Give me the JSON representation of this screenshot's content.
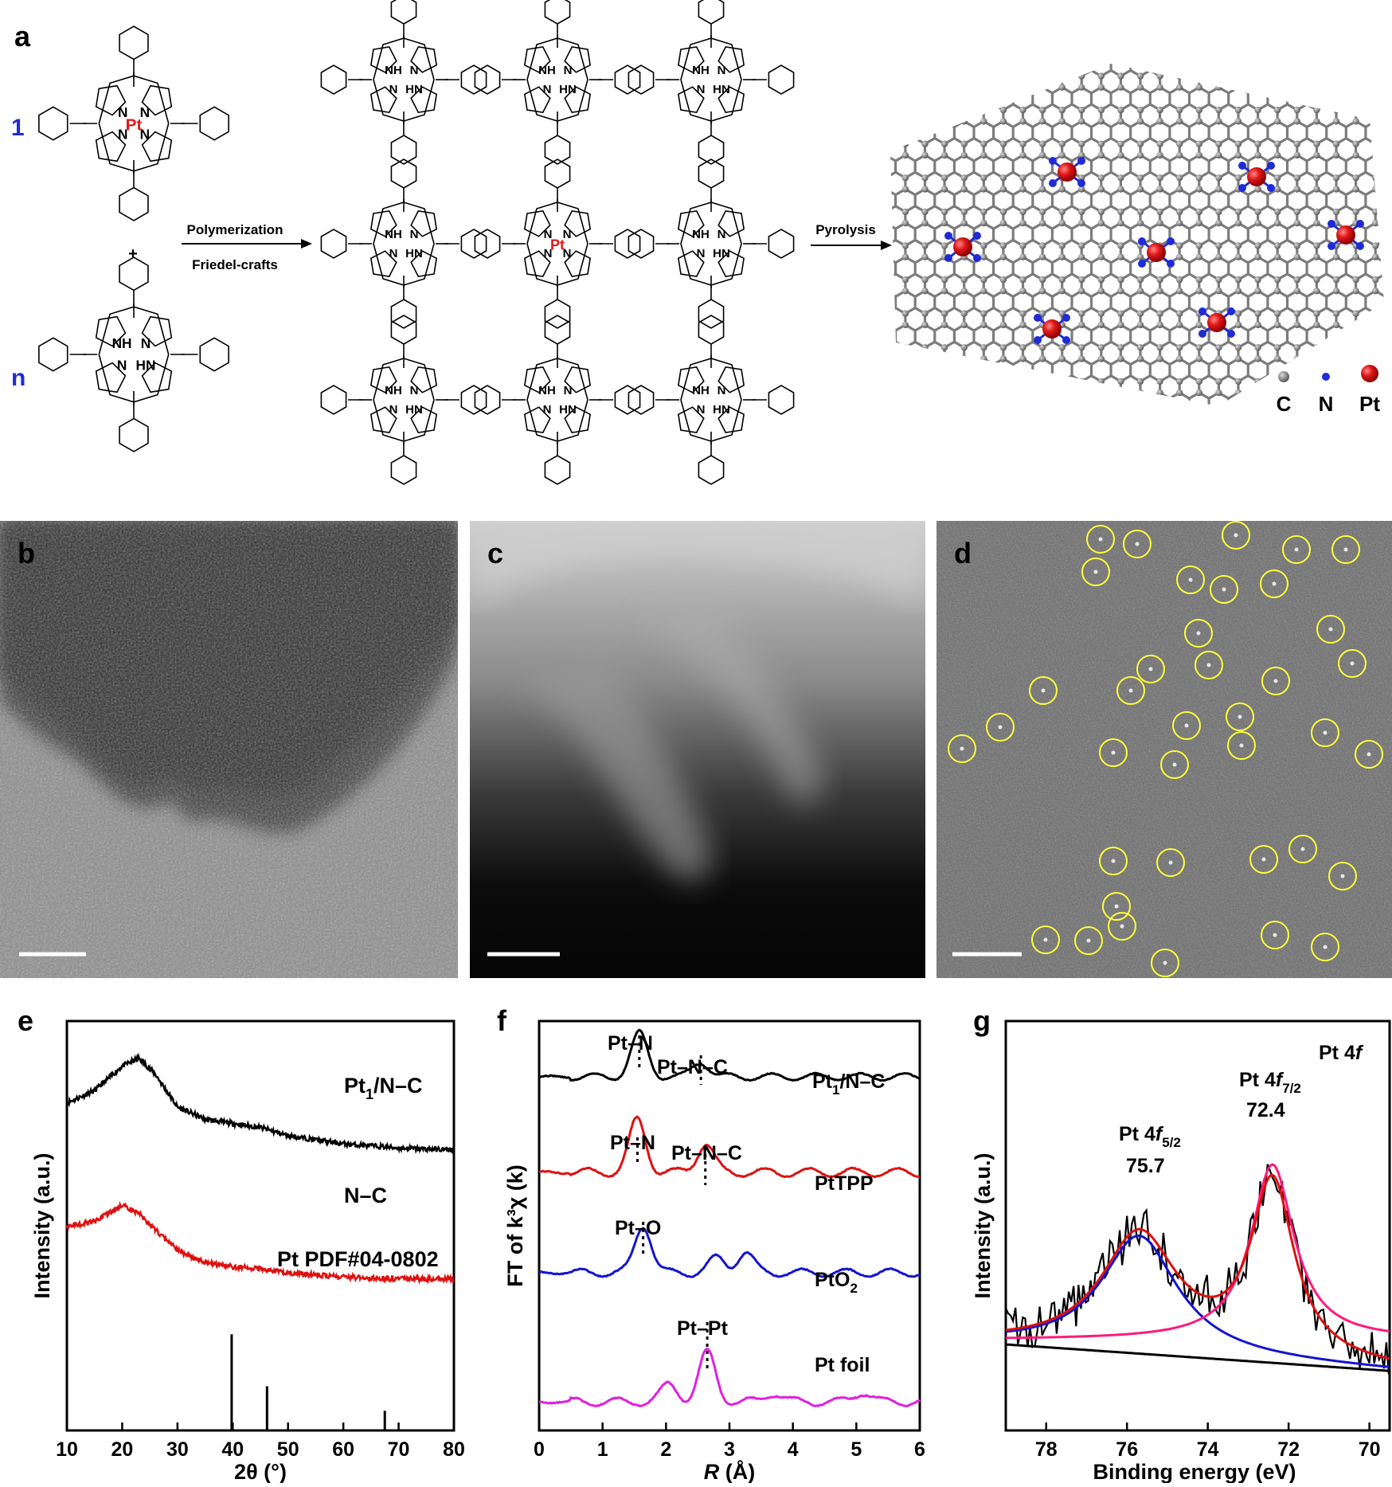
{
  "panel_a": {
    "letter": "a",
    "monomer_count_1": "1",
    "monomer_count_n": "n",
    "plus": "+",
    "reaction_1_top": "Polymerization",
    "reaction_1_bottom": "Friedel-crafts",
    "reaction_2": "Pyrolysis",
    "labels": {
      "nh": "NH",
      "hn": "HN",
      "n": "N",
      "pt": "Pt"
    },
    "legend": [
      {
        "label": "C",
        "color": "#8a8a8a"
      },
      {
        "label": "N",
        "color": "#1f2bd6"
      },
      {
        "label": "Pt",
        "color": "#d81a1a"
      }
    ]
  },
  "panel_b": {
    "letter": "b"
  },
  "panel_c": {
    "letter": "c"
  },
  "panel_d": {
    "letter": "d"
  },
  "colors": {
    "black": "#000000",
    "red": "#e01010",
    "blue": "#1414d0",
    "magenta": "#e020e0",
    "pink": "#ff1a7a",
    "label_blue": "#1f2bd6",
    "pt_red": "#e01818",
    "circle_yellow": "#ffff3a"
  },
  "chart_data": [
    {
      "panel": "e",
      "type": "line",
      "xlabel": "2θ (°)",
      "ylabel": "Intensity (a.u.)",
      "xlim": [
        10,
        80
      ],
      "xticks": [
        "10",
        "20",
        "30",
        "40",
        "50",
        "60",
        "70",
        "80"
      ],
      "series": [
        {
          "name": "Pt1/N–C",
          "x": [
            10,
            15,
            20,
            23,
            26,
            30,
            35,
            40,
            45,
            50,
            60,
            70,
            80
          ],
          "y": [
            8.0,
            8.3,
            8.9,
            9.1,
            8.7,
            7.9,
            7.6,
            7.5,
            7.4,
            7.2,
            7.0,
            6.9,
            6.85
          ]
        },
        {
          "name": "N–C",
          "x": [
            10,
            15,
            20,
            23,
            26,
            30,
            35,
            40,
            45,
            50,
            60,
            70,
            80
          ],
          "y": [
            5.0,
            5.1,
            5.5,
            5.3,
            4.9,
            4.4,
            4.1,
            4.0,
            3.95,
            3.85,
            3.75,
            3.7,
            3.7
          ]
        }
      ],
      "reference": {
        "name": "Pt PDF#04-0802",
        "peaks": [
          [
            39.8,
            2.35
          ],
          [
            46.2,
            1.08
          ],
          [
            67.5,
            0.48
          ]
        ]
      },
      "labels": {
        "series1": "Pt",
        "series1_sub": "1",
        "series1_tail": "/N–C",
        "series2": "N–C",
        "reference": "Pt PDF#04-0802"
      }
    },
    {
      "panel": "f",
      "type": "line",
      "xlabel_italic": "R",
      "xlabel_rest": " (Å)",
      "ylabel": "FT of k³χ (k)",
      "xlim": [
        0,
        6
      ],
      "xticks": [
        "0",
        "1",
        "2",
        "3",
        "4",
        "5",
        "6"
      ],
      "series": [
        {
          "name": "Pt1/N–C",
          "peaks": [
            [
              1.58,
              1.0
            ],
            [
              2.55,
              0.35
            ]
          ]
        },
        {
          "name": "PtTPP",
          "peaks": [
            [
              1.55,
              1.0
            ],
            [
              2.62,
              0.55
            ]
          ]
        },
        {
          "name": "PtO2",
          "peaks": [
            [
              1.64,
              1.0
            ],
            [
              2.8,
              0.3
            ],
            [
              3.25,
              0.42
            ]
          ]
        },
        {
          "name": "Pt foil",
          "peaks": [
            [
              2.05,
              0.35
            ],
            [
              2.65,
              1.0
            ],
            [
              3.7,
              0.18
            ],
            [
              5.1,
              0.2
            ]
          ]
        }
      ],
      "annotations": [
        "Pt–N",
        "Pt–N–C",
        "Pt–N",
        "Pt–N–C",
        "Pt–O",
        "Pt–Pt"
      ],
      "labels": {
        "s1": "Pt",
        "s1_sub": "1",
        "s1_tail": "/N–C",
        "s2": "PtTPP",
        "s3": "PtO",
        "s3_sub": "2",
        "s4": "Pt foil"
      }
    },
    {
      "panel": "g",
      "type": "line",
      "xlabel": "Binding energy (eV)",
      "ylabel": "Intensity (a.u.)",
      "xlim": [
        79,
        69.5
      ],
      "xticks": [
        "78",
        "76",
        "74",
        "72",
        "70"
      ],
      "title": "Pt 4f",
      "peaks": [
        {
          "label": "Pt 4f5/2",
          "center": 75.7
        },
        {
          "label": "Pt 4f7/2",
          "center": 72.4
        }
      ],
      "labels": {
        "title_main": "Pt 4",
        "title_f": "f",
        "p1_main": "Pt 4",
        "p1_f": "f",
        "p1_sub": "5/2",
        "p1_value": "75.7",
        "p2_main": "Pt 4",
        "p2_f": "f",
        "p2_sub": "7/2",
        "p2_value": "72.4"
      }
    }
  ]
}
